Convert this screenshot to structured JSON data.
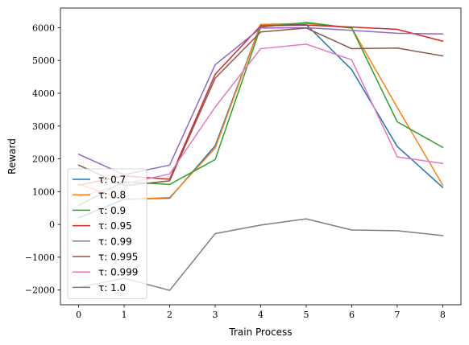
{
  "chart_data": {
    "type": "line",
    "xlabel": "Train Process",
    "ylabel": "Reward",
    "xlim": [
      -0.4,
      8.4
    ],
    "ylim": [
      -2450,
      6600
    ],
    "x_ticks": [
      "0",
      "1",
      "2",
      "3",
      "4",
      "5",
      "6",
      "7",
      "8"
    ],
    "y_ticks": [
      "−2000",
      "−1000",
      "0",
      "1000",
      "2000",
      "3000",
      "4000",
      "5000",
      "6000"
    ],
    "x": [
      0,
      1,
      2,
      3,
      4,
      5,
      6,
      7,
      8
    ],
    "legend_position": "lower-left",
    "series": [
      {
        "name": "τ: 0.7",
        "color": "#1f77b4",
        "values": [
          200,
          770,
          800,
          2400,
          6100,
          6100,
          4720,
          2380,
          1130
        ]
      },
      {
        "name": "τ: 0.8",
        "color": "#ff7f0e",
        "values": [
          1230,
          760,
          820,
          2330,
          6100,
          6130,
          5990,
          3570,
          1200
        ]
      },
      {
        "name": "τ: 0.9",
        "color": "#2ca02c",
        "values": [
          580,
          1300,
          1220,
          1980,
          6020,
          6160,
          5990,
          3130,
          2350
        ]
      },
      {
        "name": "τ: 0.95",
        "color": "#d62728",
        "values": [
          1200,
          1480,
          1380,
          4580,
          6060,
          6080,
          6020,
          5950,
          5590
        ]
      },
      {
        "name": "τ: 0.99",
        "color": "#9467bd",
        "values": [
          2140,
          1520,
          1810,
          4870,
          5990,
          6000,
          5920,
          5830,
          5810
        ]
      },
      {
        "name": "τ: 0.995",
        "color": "#8c564b",
        "values": [
          1810,
          1180,
          1330,
          4460,
          5870,
          5990,
          5360,
          5380,
          5140
        ]
      },
      {
        "name": "τ: 0.999",
        "color": "#e377c2",
        "values": [
          840,
          1240,
          1540,
          3580,
          5360,
          5500,
          5020,
          2060,
          1860
        ]
      },
      {
        "name": "τ: 1.0",
        "color": "#7f7f7f",
        "values": [
          -1920,
          -1640,
          -2010,
          -280,
          -20,
          170,
          -170,
          -190,
          -340
        ]
      }
    ]
  }
}
